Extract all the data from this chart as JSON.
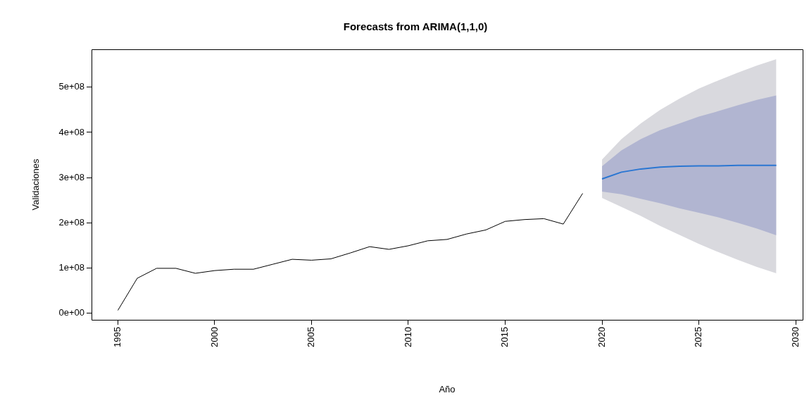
{
  "chart_data": {
    "type": "line",
    "title": "Forecasts from ARIMA(1,1,0)",
    "xlabel": "Año",
    "ylabel": "Validaciones",
    "xlim": [
      1993.64,
      2030.36
    ],
    "xticks": [
      1995,
      2000,
      2005,
      2010,
      2015,
      2020,
      2025,
      2030
    ],
    "ylim": [
      -15000000,
      584000000
    ],
    "yticks": [
      {
        "value": 0,
        "label": "0e+00"
      },
      {
        "value": 100000000,
        "label": "1e+08"
      },
      {
        "value": 200000000,
        "label": "2e+08"
      },
      {
        "value": 300000000,
        "label": "3e+08"
      },
      {
        "value": 400000000,
        "label": "4e+08"
      },
      {
        "value": 500000000,
        "label": "5e+08"
      }
    ],
    "grid": false,
    "legend": false,
    "marker": "none",
    "line_style": "solid",
    "series": [
      {
        "color": "#000000",
        "x": [
          1995,
          1996,
          1997,
          1998,
          1999,
          2000,
          2001,
          2002,
          2003,
          2004,
          2005,
          2006,
          2007,
          2008,
          2009,
          2010,
          2011,
          2012,
          2013,
          2014,
          2015,
          2016,
          2017,
          2018,
          2019
        ],
        "values": [
          6000000,
          77000000,
          99000000,
          99000000,
          88000000,
          94000000,
          97000000,
          97000000,
          108000000,
          119000000,
          117000000,
          120000000,
          133000000,
          147000000,
          141000000,
          149000000,
          160000000,
          163000000,
          175000000,
          184000000,
          203000000,
          207000000,
          209000000,
          197000000,
          265000000
        ]
      },
      {
        "color": "#d9d9de",
        "x": [
          2020,
          2021,
          2022,
          2023,
          2024,
          2025,
          2026,
          2027,
          2028,
          2029
        ],
        "values": [
          null,
          null,
          null,
          null,
          null,
          null,
          null,
          null,
          null,
          null
        ],
        "lower": [
          255000000,
          235000000,
          215000000,
          193000000,
          173000000,
          153000000,
          135000000,
          118000000,
          102000000,
          88000000
        ],
        "upper": [
          340000000,
          385000000,
          420000000,
          450000000,
          475000000,
          497000000,
          515000000,
          532000000,
          548000000,
          562000000
        ]
      },
      {
        "color": "#b1b5d1",
        "x": [
          2020,
          2021,
          2022,
          2023,
          2024,
          2025,
          2026,
          2027,
          2028,
          2029
        ],
        "values": [
          null,
          null,
          null,
          null,
          null,
          null,
          null,
          null,
          null,
          null
        ],
        "lower": [
          269000000,
          263000000,
          253000000,
          243000000,
          232000000,
          222000000,
          212000000,
          200000000,
          187000000,
          172000000
        ],
        "upper": [
          325000000,
          360000000,
          385000000,
          405000000,
          420000000,
          435000000,
          447000000,
          460000000,
          472000000,
          482000000
        ]
      },
      {
        "color": "#2a76d2",
        "x": [
          2020,
          2021,
          2022,
          2023,
          2024,
          2025,
          2026,
          2027,
          2028,
          2029
        ],
        "values": [
          297000000,
          312000000,
          319000000,
          323000000,
          325000000,
          326000000,
          326000000,
          327000000,
          327000000,
          327000000
        ]
      }
    ]
  }
}
